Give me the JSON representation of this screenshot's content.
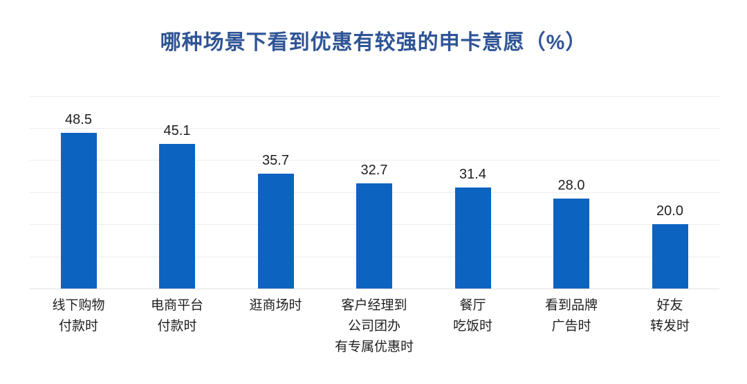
{
  "colors": {
    "background": "#ffffff",
    "bar": "#0c63c0",
    "title": "#2f5496",
    "label": "#1f1f1f",
    "gridline": "#ececec",
    "baseline": "#e0e0e0"
  },
  "chart_data": {
    "type": "bar",
    "title": "哪种场景下看到优惠有较强的申卡意愿（%）",
    "unit": "%",
    "categories": [
      [
        "线下购物",
        "付款时"
      ],
      [
        "电商平台",
        "付款时"
      ],
      [
        "逛商场时"
      ],
      [
        "客户经理到",
        "公司团办",
        "有专属优惠时"
      ],
      [
        "餐厅",
        "吃饭时"
      ],
      [
        "看到品牌",
        "广告时"
      ],
      [
        "好友",
        "转发时"
      ]
    ],
    "values": [
      48.5,
      45.1,
      35.7,
      32.7,
      31.4,
      28.0,
      20.0
    ],
    "value_labels": [
      "48.5",
      "45.1",
      "35.7",
      "32.7",
      "31.4",
      "28.0",
      "20.0"
    ],
    "xlabel": "",
    "ylabel": "",
    "ylim": [
      0,
      60
    ],
    "grid": true,
    "grid_step": 10,
    "y_tick_labels_shown": false,
    "legend": "none"
  }
}
